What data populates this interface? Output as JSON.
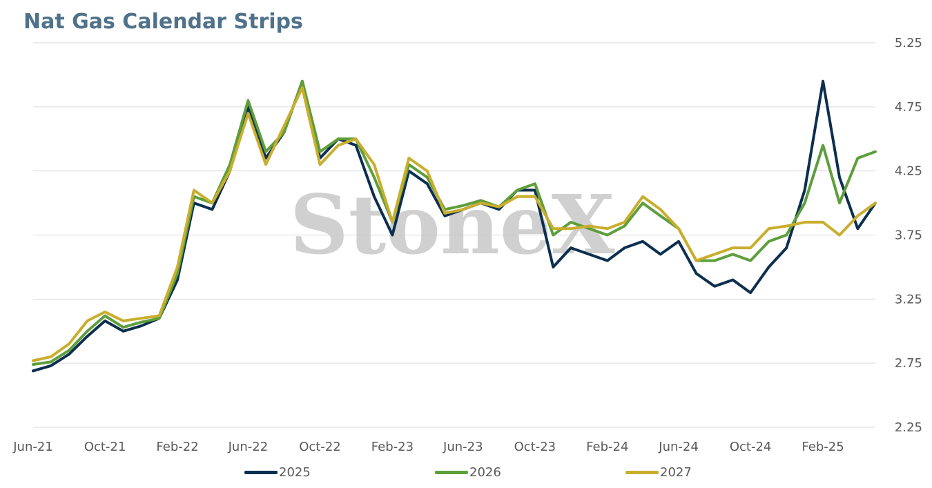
{
  "chart_data": {
    "type": "line",
    "title": "Nat Gas Calendar Strips",
    "watermark": "StoneX",
    "ylim": [
      2.25,
      5.25
    ],
    "y_ticks": [
      "5.25",
      "4.75",
      "4.25",
      "3.75",
      "3.25",
      "2.75",
      "2.25"
    ],
    "y_axis_position": "right",
    "grid": true,
    "legend_position": "bottom",
    "x_tick_labels": [
      "Jun-21",
      "Oct-21",
      "Feb-22",
      "Jun-22",
      "Oct-22",
      "Feb-23",
      "Jun-23",
      "Oct-23",
      "Feb-24",
      "Jun-24",
      "Oct-24",
      "Feb-25"
    ],
    "x": [
      "2021-06-01",
      "2021-07-01",
      "2021-08-01",
      "2021-09-01",
      "2021-10-01",
      "2021-11-01",
      "2021-12-01",
      "2022-01-01",
      "2022-02-01",
      "2022-03-01",
      "2022-04-01",
      "2022-05-01",
      "2022-06-01",
      "2022-07-01",
      "2022-08-01",
      "2022-09-01",
      "2022-10-01",
      "2022-11-01",
      "2022-12-01",
      "2023-01-01",
      "2023-02-01",
      "2023-03-01",
      "2023-04-01",
      "2023-05-01",
      "2023-06-01",
      "2023-07-01",
      "2023-08-01",
      "2023-09-01",
      "2023-10-01",
      "2023-11-01",
      "2023-12-01",
      "2024-01-01",
      "2024-02-01",
      "2024-03-01",
      "2024-04-01",
      "2024-05-01",
      "2024-06-01",
      "2024-07-01",
      "2024-08-01",
      "2024-09-01",
      "2024-10-01",
      "2024-11-01",
      "2024-12-01",
      "2025-01-01",
      "2025-02-01",
      "2025-03-01",
      "2025-04-01",
      "2025-05-01"
    ],
    "series": [
      {
        "name": "2025",
        "color": "#0d2f4f",
        "values": [
          2.69,
          2.73,
          2.82,
          2.96,
          3.08,
          3.0,
          3.04,
          3.1,
          3.4,
          4.0,
          3.95,
          4.25,
          4.75,
          4.35,
          4.55,
          4.95,
          4.35,
          4.5,
          4.45,
          4.05,
          3.75,
          4.25,
          4.15,
          3.9,
          3.95,
          4.0,
          3.95,
          4.1,
          4.1,
          3.5,
          3.65,
          3.6,
          3.55,
          3.65,
          3.7,
          3.6,
          3.7,
          3.45,
          3.35,
          3.4,
          3.3,
          3.5,
          3.65,
          4.1,
          4.95,
          4.2,
          3.8,
          4.0
        ]
      },
      {
        "name": "2026",
        "color": "#5e9e3c",
        "values": [
          2.74,
          2.76,
          2.85,
          3.0,
          3.12,
          3.03,
          3.07,
          3.1,
          3.45,
          4.05,
          4.0,
          4.3,
          4.8,
          4.4,
          4.55,
          4.95,
          4.4,
          4.5,
          4.5,
          4.2,
          3.85,
          4.3,
          4.2,
          3.95,
          3.98,
          4.02,
          3.97,
          4.1,
          4.15,
          3.75,
          3.85,
          3.8,
          3.75,
          3.82,
          4.0,
          3.9,
          3.8,
          3.55,
          3.55,
          3.6,
          3.55,
          3.7,
          3.75,
          4.0,
          4.45,
          4.0,
          4.35,
          4.4
        ]
      },
      {
        "name": "2027",
        "color": "#c9ae2e",
        "values": [
          2.77,
          2.8,
          2.9,
          3.08,
          3.15,
          3.08,
          3.1,
          3.12,
          3.5,
          4.1,
          4.0,
          4.25,
          4.7,
          4.3,
          4.6,
          4.9,
          4.3,
          4.45,
          4.5,
          4.3,
          3.85,
          4.35,
          4.25,
          3.92,
          3.95,
          4.0,
          3.97,
          4.05,
          4.05,
          3.8,
          3.8,
          3.82,
          3.8,
          3.85,
          4.05,
          3.95,
          3.8,
          3.55,
          3.6,
          3.65,
          3.65,
          3.8,
          3.82,
          3.85,
          3.85,
          3.75,
          3.9,
          4.0
        ]
      }
    ]
  }
}
